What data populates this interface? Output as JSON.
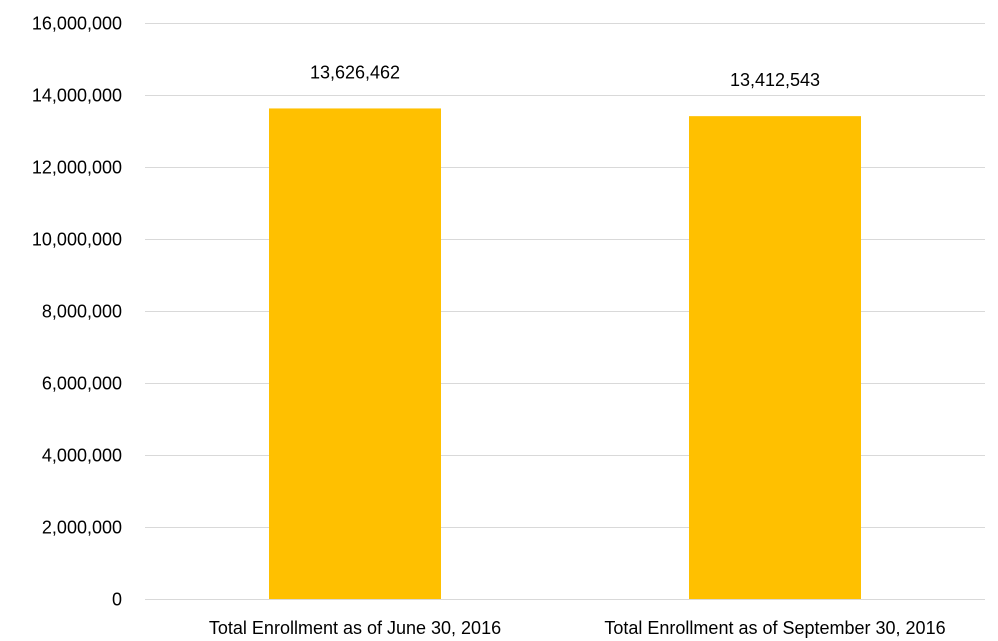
{
  "chart_data": {
    "type": "bar",
    "title": "",
    "xlabel": "",
    "ylabel": "",
    "categories": [
      "Total Enrollment as of June 30, 2016",
      "Total Enrollment as of September 30, 2016"
    ],
    "values": [
      13626462,
      13412543
    ],
    "data_labels": [
      "13,626,462",
      "13,412,543"
    ],
    "ylim": [
      0,
      16000000
    ],
    "yticks": [
      0,
      2000000,
      4000000,
      6000000,
      8000000,
      10000000,
      12000000,
      14000000,
      16000000
    ],
    "ytick_labels": [
      "0",
      "2,000,000",
      "4,000,000",
      "6,000,000",
      "8,000,000",
      "10,000,000",
      "12,000,000",
      "14,000,000",
      "16,000,000"
    ],
    "grid": true,
    "legend": "none",
    "bar_color": "#ffc000",
    "grid_color": "#d9d9d9"
  }
}
